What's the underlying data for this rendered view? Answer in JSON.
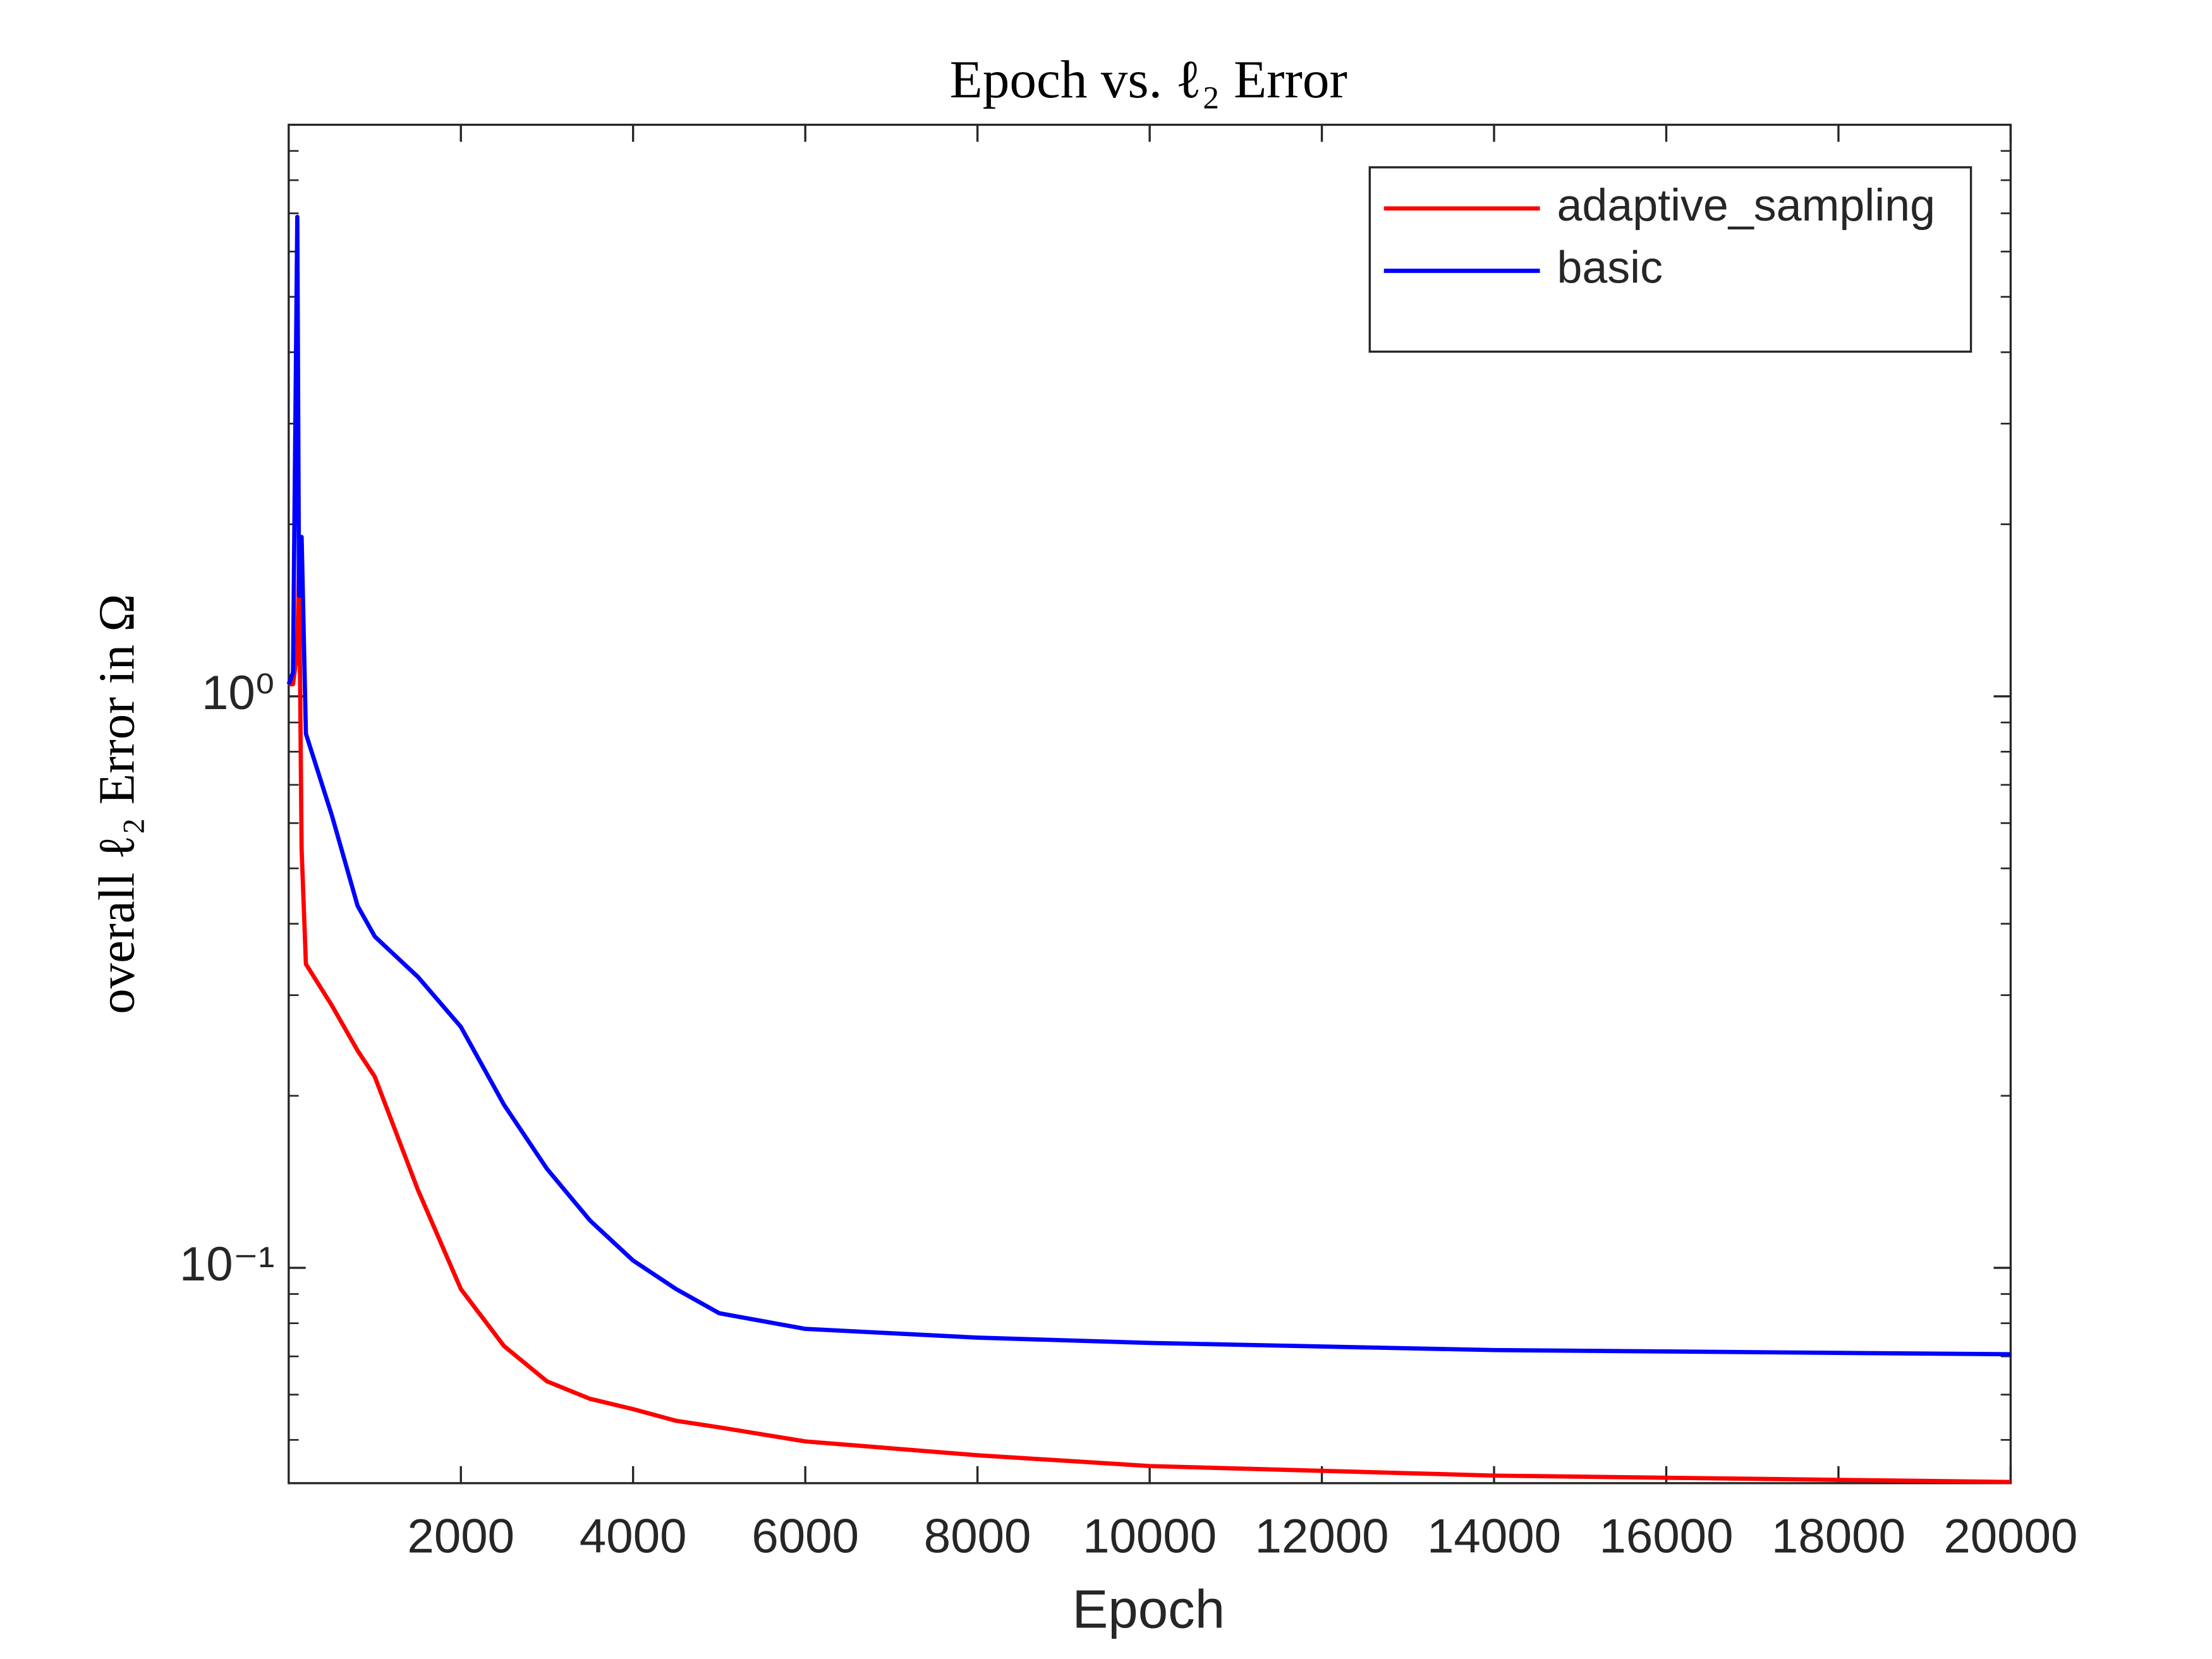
{
  "chart_data": {
    "type": "line",
    "title": "Epoch vs. ℓ₂ Error",
    "x_label": "Epoch",
    "y_label": "overall ℓ₂ Error in Ω",
    "x": [
      0,
      50,
      100,
      120,
      150,
      200,
      500,
      800,
      1000,
      1500,
      2000,
      2500,
      3000,
      3500,
      4000,
      4500,
      5000,
      6000,
      8000,
      10000,
      14000,
      20000
    ],
    "series": [
      {
        "name": "adaptive_sampling",
        "color": "#ff0000",
        "values": [
          1.05,
          1.05,
          1.2,
          1.69,
          0.54,
          0.34,
          0.288,
          0.24,
          0.216,
          0.137,
          0.0918,
          0.073,
          0.0633,
          0.059,
          0.0566,
          0.054,
          0.0526,
          0.0497,
          0.047,
          0.045,
          0.0433,
          0.0422
        ]
      },
      {
        "name": "basic",
        "color": "#0000ff",
        "values": [
          1.05,
          1.1,
          6.9,
          1.5,
          1.9,
          0.86,
          0.62,
          0.43,
          0.38,
          0.323,
          0.264,
          0.193,
          0.149,
          0.121,
          0.103,
          0.0918,
          0.0833,
          0.0782,
          0.0755,
          0.0739,
          0.0718,
          0.0706
        ]
      }
    ],
    "xlim": [
      0,
      20000
    ],
    "xticks": [
      2000,
      4000,
      6000,
      8000,
      10000,
      12000,
      14000,
      16000,
      18000,
      20000
    ],
    "ylim": [
      0.042,
      10
    ],
    "y_scale": "log",
    "yticks": [
      {
        "value": 0.1,
        "label": "10⁻¹"
      },
      {
        "value": 1,
        "label": "10⁰"
      }
    ],
    "yminorticks": [
      0.05,
      0.06,
      0.07,
      0.08,
      0.09,
      0.2,
      0.3,
      0.4,
      0.5,
      0.6,
      0.7,
      0.8,
      0.9,
      2,
      3,
      4,
      5,
      6,
      7,
      8,
      9
    ],
    "legend": "northeast",
    "grid": false
  }
}
